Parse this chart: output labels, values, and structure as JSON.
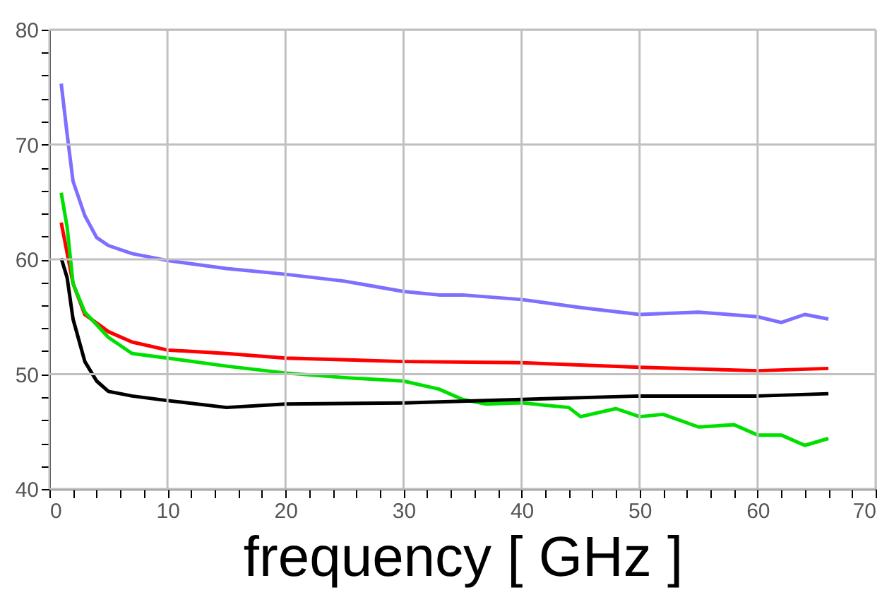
{
  "chart_data": {
    "type": "line",
    "xlabel": "frequency [ GHz ]",
    "xlim": [
      0,
      70
    ],
    "ylim": [
      40,
      80
    ],
    "xticks": [
      0,
      {
        "value": 2,
        "label": null
      },
      {
        "value": 4,
        "label": null
      },
      {
        "value": 6,
        "label": null
      },
      {
        "value": 8,
        "label": null
      },
      10,
      {
        "value": 12,
        "label": null
      },
      {
        "value": 14,
        "label": null
      },
      {
        "value": 16,
        "label": null
      },
      {
        "value": 18,
        "label": null
      },
      20,
      {
        "value": 22,
        "label": null
      },
      {
        "value": 24,
        "label": null
      },
      {
        "value": 26,
        "label": null
      },
      {
        "value": 28,
        "label": null
      },
      30,
      {
        "value": 32,
        "label": null
      },
      {
        "value": 34,
        "label": null
      },
      {
        "value": 36,
        "label": null
      },
      {
        "value": 38,
        "label": null
      },
      40,
      {
        "value": 42,
        "label": null
      },
      {
        "value": 44,
        "label": null
      },
      {
        "value": 46,
        "label": null
      },
      {
        "value": 48,
        "label": null
      },
      50,
      {
        "value": 52,
        "label": null
      },
      {
        "value": 54,
        "label": null
      },
      {
        "value": 56,
        "label": null
      },
      {
        "value": 58,
        "label": null
      },
      60,
      {
        "value": 62,
        "label": null
      },
      {
        "value": 64,
        "label": null
      },
      {
        "value": 66,
        "label": null
      },
      {
        "value": 68,
        "label": null
      },
      70
    ],
    "yticks": [
      40,
      {
        "value": 42,
        "label": null
      },
      {
        "value": 44,
        "label": null
      },
      {
        "value": 46,
        "label": null
      },
      {
        "value": 48,
        "label": null
      },
      50,
      {
        "value": 52,
        "label": null
      },
      {
        "value": 54,
        "label": null
      },
      {
        "value": 56,
        "label": null
      },
      {
        "value": 58,
        "label": null
      },
      60,
      {
        "value": 62,
        "label": null
      },
      {
        "value": 64,
        "label": null
      },
      {
        "value": 66,
        "label": null
      },
      {
        "value": 68,
        "label": null
      },
      70,
      {
        "value": 72,
        "label": null
      },
      {
        "value": 74,
        "label": null
      },
      {
        "value": 76,
        "label": null
      },
      {
        "value": 78,
        "label": null
      },
      80
    ],
    "grid": true,
    "legend": false,
    "marker": "none",
    "line_style": "solid",
    "series": [
      {
        "color": "#7f6fff",
        "x": [
          1,
          1.5,
          2,
          3,
          4,
          5,
          7,
          10,
          15,
          20,
          25,
          30,
          33,
          35,
          40,
          45,
          50,
          55,
          60,
          62,
          64,
          66
        ],
        "values": [
          75.3,
          70.9,
          66.8,
          63.8,
          61.9,
          61.2,
          60.5,
          59.9,
          59.2,
          58.7,
          58.1,
          57.2,
          56.9,
          56.9,
          56.5,
          55.8,
          55.2,
          55.4,
          55.0,
          54.5,
          55.2,
          54.8
        ]
      },
      {
        "color": "#ff0000",
        "x": [
          1,
          2,
          3,
          5,
          7,
          10,
          15,
          20,
          30,
          40,
          50,
          60,
          66
        ],
        "values": [
          63.2,
          57.9,
          55.2,
          53.7,
          52.8,
          52.1,
          51.8,
          51.4,
          51.1,
          51.0,
          50.6,
          50.3,
          50.5
        ]
      },
      {
        "color": "#00e000",
        "x": [
          1,
          1.5,
          2,
          3,
          5,
          7,
          10,
          15,
          20,
          25,
          30,
          33,
          35,
          37,
          40,
          44,
          45,
          48,
          50,
          52,
          55,
          58,
          60,
          62,
          64,
          66
        ],
        "values": [
          65.8,
          62.8,
          57.9,
          55.4,
          53.2,
          51.8,
          51.4,
          50.7,
          50.1,
          49.7,
          49.4,
          48.7,
          47.8,
          47.4,
          47.5,
          47.1,
          46.3,
          47.0,
          46.3,
          46.5,
          45.4,
          45.6,
          44.7,
          44.7,
          43.8,
          44.4
        ]
      },
      {
        "color": "#000000",
        "x": [
          1,
          1.5,
          2,
          3,
          4,
          5,
          7,
          10,
          15,
          20,
          30,
          40,
          50,
          60,
          66
        ],
        "values": [
          60.1,
          58.4,
          54.8,
          51.1,
          49.4,
          48.5,
          48.1,
          47.7,
          47.1,
          47.4,
          47.5,
          47.8,
          48.1,
          48.1,
          48.3
        ]
      }
    ]
  }
}
